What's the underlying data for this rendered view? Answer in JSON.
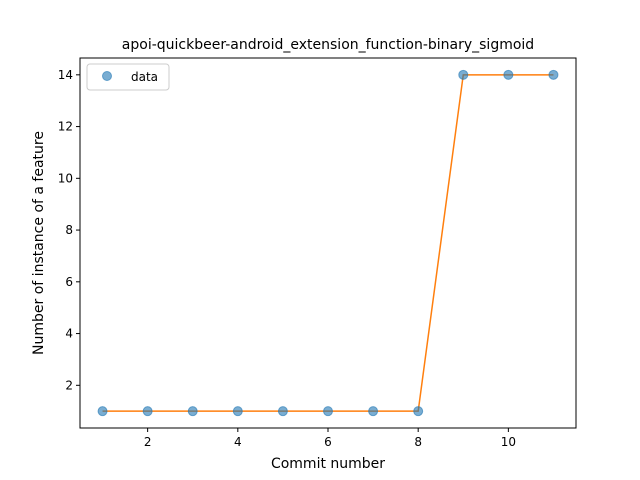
{
  "chart_data": {
    "type": "line",
    "title": "apoi-quickbeer-android_extension_function-binary_sigmoid",
    "xlabel": "Commit number",
    "ylabel": "Number of instance of a feature",
    "x": [
      1,
      2,
      3,
      4,
      5,
      6,
      7,
      8,
      9,
      10,
      11
    ],
    "series": [
      {
        "name": "data",
        "style": "markers",
        "color": "#1f77b4",
        "values": [
          1,
          1,
          1,
          1,
          1,
          1,
          1,
          1,
          14,
          14,
          14
        ]
      },
      {
        "style": "line",
        "color": "#ff7f0e",
        "values": [
          1,
          1,
          1,
          1,
          1,
          1,
          1,
          1,
          14,
          14,
          14
        ]
      }
    ],
    "xlim": [
      0.5,
      11.5
    ],
    "ylim": [
      0.35,
      14.65
    ],
    "xticks": [
      2,
      4,
      6,
      8,
      10
    ],
    "yticks": [
      2,
      4,
      6,
      8,
      10,
      12,
      14
    ],
    "grid": false,
    "legend_position": "top-left"
  }
}
